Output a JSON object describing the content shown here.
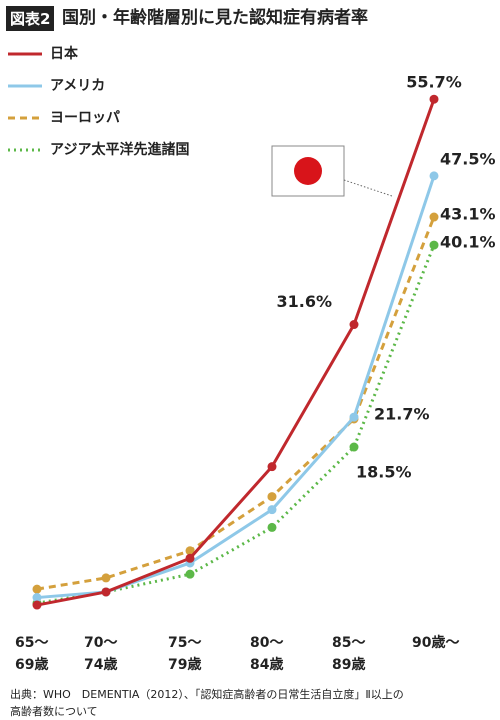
{
  "chart_data": {
    "type": "line",
    "badge": "図表2",
    "title": "国別・年齢階層別に見た認知症有病者率",
    "categories": [
      "65〜\n69歳",
      "70〜\n74歳",
      "75〜\n79歳",
      "80〜\n84歳",
      "85〜\n89歳",
      "90歳〜"
    ],
    "ylim": [
      0,
      60
    ],
    "series": [
      {
        "name": "日本",
        "color": "#c0282d",
        "dash": "solid",
        "values": [
          1.6,
          3.0,
          6.6,
          16.4,
          31.6,
          55.7
        ],
        "value_labels": [
          null,
          null,
          null,
          null,
          "31.6%",
          "55.7%"
        ]
      },
      {
        "name": "アメリカ",
        "color": "#8ec8e8",
        "dash": "solid",
        "values": [
          2.4,
          3.0,
          6.1,
          11.8,
          21.7,
          47.5
        ],
        "value_labels": [
          null,
          null,
          null,
          null,
          "21.7%",
          "47.5%"
        ]
      },
      {
        "name": "ヨーロッパ",
        "color": "#d4a03c",
        "dash": "dashed",
        "values": [
          3.3,
          4.5,
          7.4,
          13.2,
          21.5,
          43.1
        ],
        "value_labels": [
          null,
          null,
          null,
          null,
          null,
          "43.1%"
        ]
      },
      {
        "name": "アジア太平洋先進諸国",
        "color": "#5cb848",
        "dash": "dotted",
        "values": [
          1.8,
          3.0,
          4.9,
          9.9,
          18.5,
          40.1
        ],
        "value_labels": [
          null,
          null,
          null,
          null,
          "18.5%",
          "40.1%"
        ]
      }
    ],
    "source": "出典：WHO　DEMENTIA（2012）、「認知症高齢者の日常生活自立度」Ⅱ以上の高齢者数について"
  }
}
